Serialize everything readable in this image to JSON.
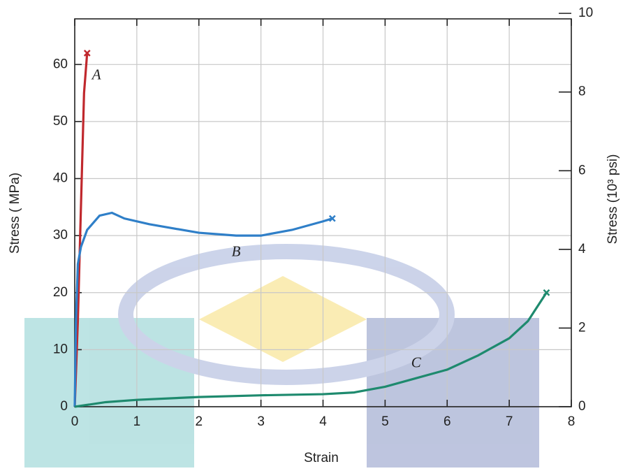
{
  "chart_data": {
    "type": "line",
    "xlabel": "Strain",
    "ylabel": "Stress ( MPa)",
    "y2label": "Stress (10³ psi)",
    "xlim": [
      0,
      8
    ],
    "xticks": [
      0,
      1,
      2,
      3,
      4,
      5,
      6,
      7,
      8
    ],
    "ylim": [
      0,
      68
    ],
    "yticks": [
      0,
      10,
      20,
      30,
      40,
      50,
      60
    ],
    "y2lim": [
      0,
      9.86
    ],
    "y2ticks": [
      0,
      2,
      4,
      6,
      8,
      10
    ],
    "grid": true,
    "series": [
      {
        "name": "A",
        "color": "#c0282d",
        "x": [
          0,
          0.05,
          0.1,
          0.15,
          0.2
        ],
        "values": [
          0,
          15,
          35,
          55,
          62
        ]
      },
      {
        "name": "B",
        "color": "#2f7fc8",
        "x": [
          0,
          0.02,
          0.05,
          0.1,
          0.2,
          0.4,
          0.6,
          0.8,
          1.2,
          2,
          2.6,
          3,
          3.5,
          4,
          4.15
        ],
        "values": [
          0,
          15,
          25,
          28,
          31,
          33.5,
          34,
          33,
          32,
          30.5,
          30,
          30,
          31,
          32.5,
          33
        ]
      },
      {
        "name": "C",
        "color": "#1e8a6e",
        "x": [
          0,
          0.5,
          1,
          2,
          3,
          4,
          4.5,
          5,
          5.5,
          6,
          6.5,
          7,
          7.3,
          7.6
        ],
        "values": [
          0,
          0.8,
          1.2,
          1.7,
          2,
          2.2,
          2.5,
          3.5,
          5,
          6.5,
          9,
          12,
          15,
          20
        ]
      }
    ]
  }
}
